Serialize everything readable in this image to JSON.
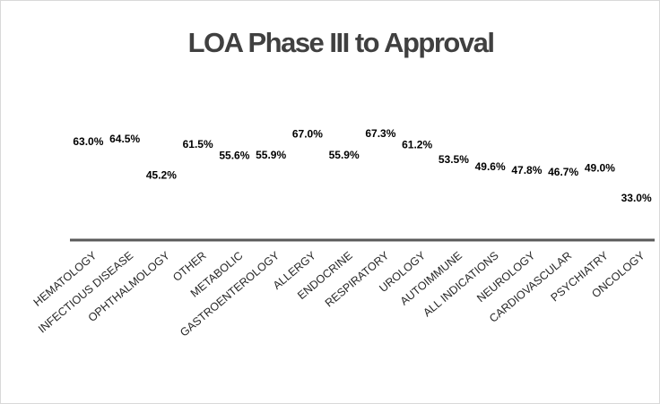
{
  "chart_data": {
    "type": "bar",
    "title": "LOA Phase III to Approval",
    "categories": [
      "HEMATOLOGY",
      "INFECTIOUS DISEASE",
      "OPHTHALMOLOGY",
      "OTHER",
      "METABOLIC",
      "GASTROENTEROLOGY",
      "ALLERGY",
      "ENDOCRINE",
      "RESPIRATORY",
      "UROLOGY",
      "AUTOIMMUNE",
      "ALL INDICATIONS",
      "NEUROLOGY",
      "CARDIOVASCULAR",
      "PSYCHIATRY",
      "ONCOLOGY"
    ],
    "values": [
      63.0,
      64.5,
      45.2,
      61.5,
      55.6,
      55.9,
      67.0,
      55.9,
      67.3,
      61.2,
      53.5,
      49.6,
      47.8,
      46.7,
      49.0,
      33.0
    ],
    "value_labels": [
      "63.0%",
      "64.5%",
      "45.2%",
      "61.5%",
      "55.6%",
      "55.9%",
      "67.0%",
      "55.9%",
      "67.3%",
      "61.2%",
      "53.5%",
      "49.6%",
      "47.8%",
      "46.7%",
      "49.0%",
      "33.0%"
    ],
    "ylim": [
      11,
      100
    ]
  }
}
